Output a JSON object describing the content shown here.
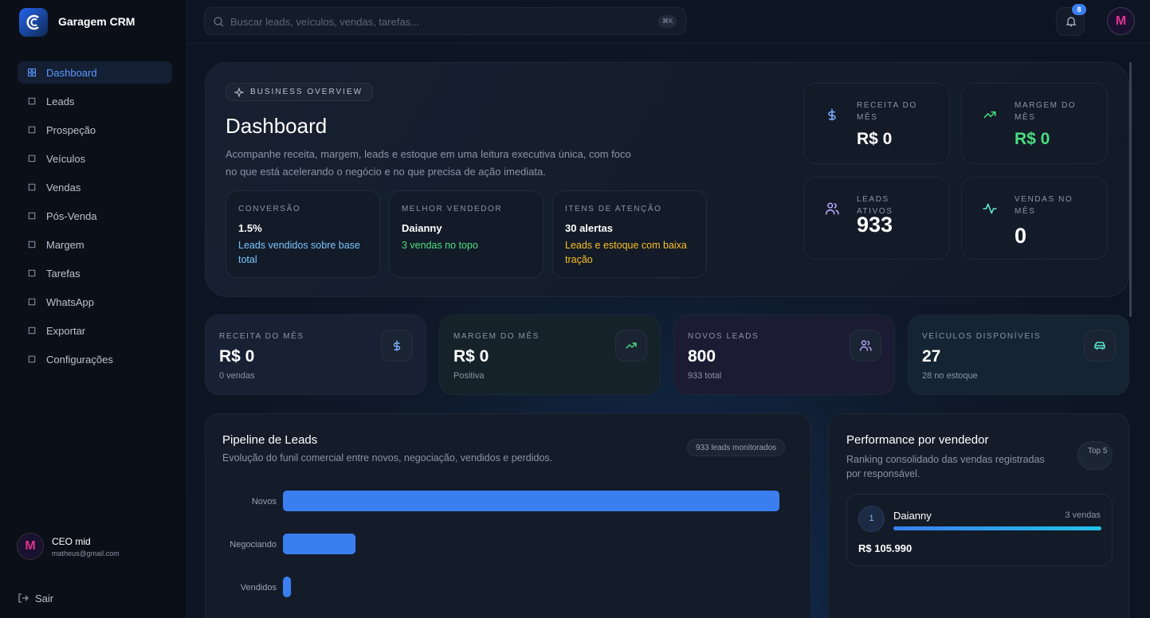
{
  "app": {
    "name": "Garagem CRM"
  },
  "sidebar": {
    "nav": [
      "Dashboard",
      "Leads",
      "Prospeção",
      "Veículos",
      "Vendas",
      "Pós-Venda",
      "Margem",
      "Tarefas",
      "WhatsApp",
      "Exportar",
      "Configurações"
    ],
    "user": {
      "name": "CEO mid",
      "email": "matheus@gmail.com"
    },
    "logout": "Sair"
  },
  "topbar": {
    "search_placeholder": "Buscar leads, veículos, vendas, tarefas...",
    "shortcut": "⌘K",
    "notifications": "8"
  },
  "overview": {
    "badge": "BUSINESS OVERVIEW",
    "title": "Dashboard",
    "description": "Acompanhe receita, margem, leads e estoque em uma leitura executiva única, com foco no que está acelerando o negócio e no que precisa de ação imediata.",
    "cards": [
      {
        "label": "CONVERSÃO",
        "value": "1.5%",
        "note": "Leads vendidos sobre base total"
      },
      {
        "label": "MELHOR VENDEDOR",
        "value": "Daianny",
        "note": "3 vendas no topo"
      },
      {
        "label": "ITENS DE ATENÇÃO",
        "value": "30 alertas",
        "note": "Leads e estoque com baixa tração"
      }
    ],
    "stats": [
      {
        "label": "RECEITA DO MÊS",
        "value": "R$ 0"
      },
      {
        "label": "MARGEM DO MÊS",
        "value": "R$ 0"
      },
      {
        "label": "LEADS ATIVOS",
        "value": "933"
      },
      {
        "label": "VENDAS NO MÊS",
        "value": "0"
      }
    ]
  },
  "kpis": [
    {
      "label": "RECEITA DO MÊS",
      "value": "R$ 0",
      "note": "0 vendas"
    },
    {
      "label": "MARGEM DO MÊS",
      "value": "R$ 0",
      "note": "Positiva"
    },
    {
      "label": "NOVOS LEADS",
      "value": "800",
      "note": "933 total"
    },
    {
      "label": "VEÍCULOS DISPONÍVEIS",
      "value": "27",
      "note": "28 no estoque"
    }
  ],
  "pipeline": {
    "title": "Pipeline de Leads",
    "subtitle": "Evolução do funil comercial entre novos, negociação, vendidos e perdidos.",
    "badge": "933 leads monitorados",
    "chart_data": {
      "type": "bar",
      "orientation": "horizontal",
      "categories": [
        "Novos",
        "Negociando",
        "Vendidos"
      ],
      "values": [
        800,
        117,
        13
      ],
      "color": "#3b7ef0"
    }
  },
  "performance": {
    "title": "Performance por vendedor",
    "subtitle": "Ranking consolidado das vendas registradas por responsável.",
    "badge": "Top 5",
    "ranking": [
      {
        "rank": "1",
        "name": "Daianny",
        "sales": "3 vendas",
        "revenue": "R$ 105.990"
      }
    ]
  }
}
